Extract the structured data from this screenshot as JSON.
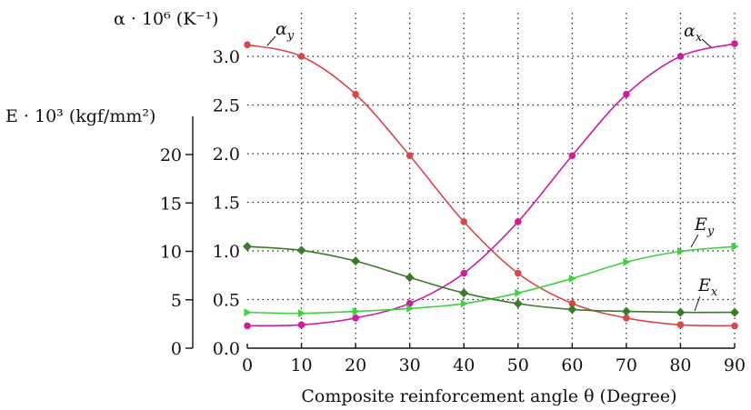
{
  "chart_data": {
    "type": "line",
    "xlabel": "Composite reinforcement angle θ (Degree)",
    "left_axis_label": "E · 10³ (kgf/mm²)",
    "right_axis_label": "α · 10⁶ (K⁻¹)",
    "x": [
      0,
      10,
      20,
      30,
      40,
      50,
      60,
      70,
      80,
      90
    ],
    "x_ticks": [
      "0",
      "10",
      "20",
      "30",
      "40",
      "50",
      "60",
      "70",
      "80",
      "90"
    ],
    "xlim": [
      0,
      90
    ],
    "alpha_axis": {
      "ylim": [
        0.0,
        3.0
      ],
      "ticks": [
        "0.0",
        "0.5",
        "1.0",
        "1.5",
        "2.0",
        "2.5",
        "3.0"
      ]
    },
    "E_axis": {
      "ylim": [
        0,
        20
      ],
      "ticks": [
        "0",
        "5",
        "10",
        "15",
        "20"
      ]
    },
    "grid": true,
    "series": [
      {
        "name": "α_y",
        "label_main": "α",
        "label_sub": "y",
        "axis": "alpha",
        "color": "#d9474a",
        "marker": "circle",
        "values": [
          3.12,
          3.0,
          2.61,
          1.98,
          1.3,
          0.77,
          0.46,
          0.31,
          0.24,
          0.23
        ]
      },
      {
        "name": "α_x",
        "label_main": "α",
        "label_sub": "x",
        "axis": "alpha",
        "color": "#cc1f99",
        "marker": "circle",
        "values": [
          0.23,
          0.24,
          0.31,
          0.46,
          0.77,
          1.3,
          1.98,
          2.61,
          3.0,
          3.13
        ]
      },
      {
        "name": "E_y",
        "label_main": "E",
        "label_sub": "y",
        "axis": "E",
        "color": "#3fd13f",
        "marker": "triangle",
        "values": [
          3.7,
          3.6,
          3.8,
          4.1,
          4.6,
          5.7,
          7.2,
          8.9,
          10.0,
          10.5
        ]
      },
      {
        "name": "E_x",
        "label_main": "E",
        "label_sub": "x",
        "axis": "E",
        "color": "#3b7a2a",
        "marker": "diamond",
        "values": [
          10.5,
          10.1,
          9.0,
          7.3,
          5.7,
          4.6,
          4.0,
          3.8,
          3.7,
          3.7
        ]
      }
    ]
  }
}
